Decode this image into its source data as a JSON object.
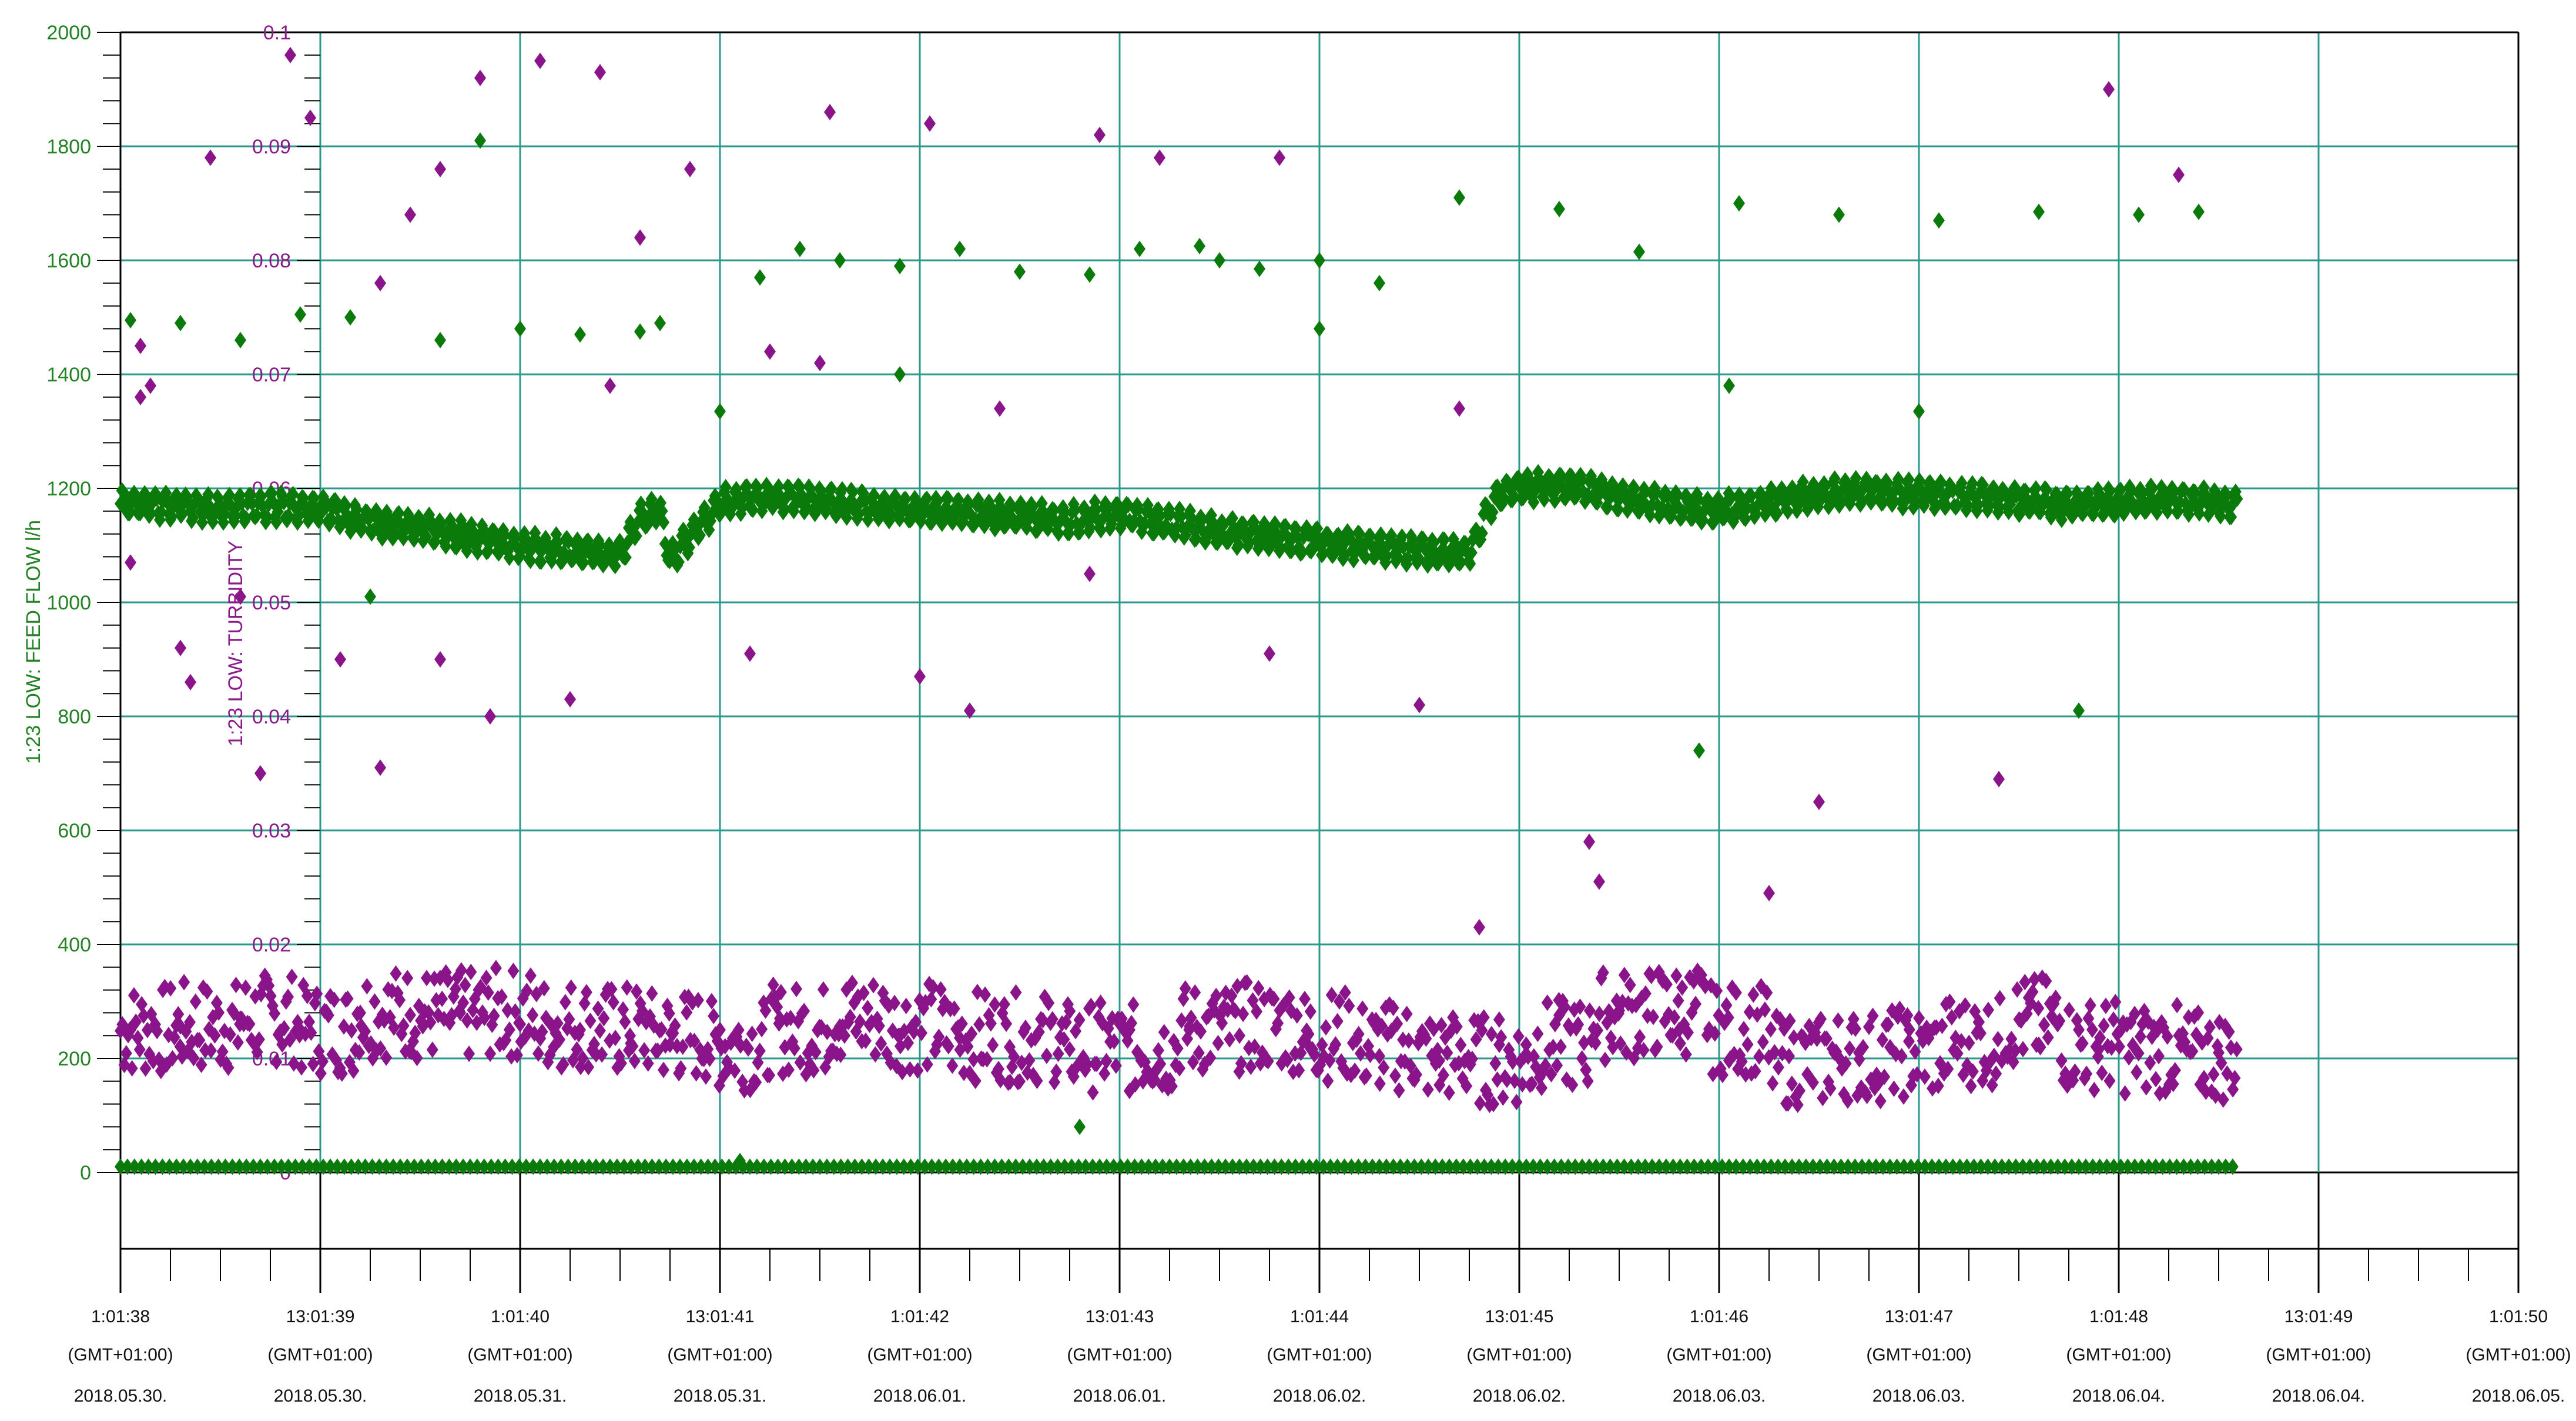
{
  "chart_data": {
    "type": "scatter",
    "colors": {
      "feed_flow": "#0a7a0a",
      "turbidity": "#8a148a",
      "grid": "#2a9a8a",
      "axis": "#000000"
    },
    "y_left": {
      "label": "1:23 LOW: FEED FLOW l/h",
      "ticks": [
        "2000",
        "1800",
        "1600",
        "1400",
        "1200",
        "1000",
        "800",
        "600",
        "400",
        "200",
        "0"
      ],
      "range": [
        0,
        2000
      ]
    },
    "y_right": {
      "label": "1:23 LOW: TURBIDITY",
      "ticks": [
        "0.1",
        "0.09",
        "0.08",
        "0.07",
        "0.06",
        "0.05",
        "0.04",
        "0.03",
        "0.02",
        "0.01",
        "0"
      ],
      "range": [
        0,
        0.1
      ]
    },
    "x_axis": {
      "labels": [
        {
          "time": "1:01:38",
          "tz": "(GMT+01:00)",
          "date": "2018.05.30."
        },
        {
          "time": "13:01:39",
          "tz": "(GMT+01:00)",
          "date": "2018.05.30."
        },
        {
          "time": "1:01:40",
          "tz": "(GMT+01:00)",
          "date": "2018.05.31."
        },
        {
          "time": "13:01:41",
          "tz": "(GMT+01:00)",
          "date": "2018.05.31."
        },
        {
          "time": "1:01:42",
          "tz": "(GMT+01:00)",
          "date": "2018.06.01."
        },
        {
          "time": "13:01:43",
          "tz": "(GMT+01:00)",
          "date": "2018.06.01."
        },
        {
          "time": "1:01:44",
          "tz": "(GMT+01:00)",
          "date": "2018.06.02."
        },
        {
          "time": "13:01:45",
          "tz": "(GMT+01:00)",
          "date": "2018.06.02."
        },
        {
          "time": "1:01:46",
          "tz": "(GMT+01:00)",
          "date": "2018.06.03."
        },
        {
          "time": "13:01:47",
          "tz": "(GMT+01:00)",
          "date": "2018.06.03."
        },
        {
          "time": "1:01:48",
          "tz": "(GMT+01:00)",
          "date": "2018.06.04."
        },
        {
          "time": "13:01:49",
          "tz": "(GMT+01:00)",
          "date": "2018.06.04."
        },
        {
          "time": "1:01:50",
          "tz": "(GMT+01:00)",
          "date": "2018.06.05."
        }
      ]
    },
    "grid": true,
    "series": [
      {
        "name": "1:23 LOW: FEED FLOW l/h",
        "axis": "left",
        "x": [
          0,
          0.25,
          0.5,
          0.75,
          1,
          1.25,
          1.5,
          1.75,
          2,
          2.25,
          2.5,
          2.75,
          2.6,
          2.7,
          3,
          3.25,
          3.5,
          3.75,
          3.8,
          4,
          4.25,
          4.5,
          4.75,
          5,
          5.25,
          5.4,
          5.5,
          5.75,
          6,
          6.25,
          6.5,
          6.75,
          6.85,
          6.9,
          7,
          7.25,
          7.5,
          7.75,
          8,
          8.25,
          8.5,
          8.75,
          9,
          9.25,
          9.5,
          9.75,
          10,
          10.25,
          10.5,
          10.6,
          0.05,
          0.3,
          0.6,
          0.9,
          1.15,
          1.6,
          2.0,
          2.3,
          2.7,
          3.0,
          3.2,
          3.4,
          3.6,
          3.9,
          4.2,
          4.5,
          4.85,
          5.1,
          5.4,
          5.7,
          6.0,
          6.3,
          6.7,
          7.2,
          7.6,
          8.1,
          8.6,
          9.1,
          9.6,
          10.1,
          10.4,
          6.0,
          1.25,
          1.8,
          3.9,
          5.5,
          2.6,
          8.05,
          9.8,
          7.9,
          9.0,
          3.1,
          4.8
        ],
        "values": [
          1175,
          1170,
          1165,
          1168,
          1165,
          1140,
          1130,
          1115,
          1100,
          1090,
          1083,
          1075,
          1148,
          1160,
          1175,
          1185,
          1178,
          1170,
          1165,
          1162,
          1158,
          1150,
          1145,
          1155,
          1140,
          1132,
          1125,
          1115,
          1105,
          1098,
          1090,
          1085,
          1165,
          1190,
          1200,
          1205,
          1185,
          1170,
          1162,
          1175,
          1190,
          1195,
          1190,
          1185,
          1180,
          1170,
          1178,
          1180,
          1175,
          1172,
          1495,
          1490,
          1460,
          1505,
          1500,
          1460,
          1480,
          1470,
          1490,
          1335,
          1570,
          1620,
          1600,
          1590,
          1620,
          1580,
          1575,
          1620,
          1625,
          1585,
          1600,
          1560,
          1710,
          1690,
          1615,
          1700,
          1680,
          1670,
          1685,
          1680,
          1685,
          1480,
          1010,
          1810,
          1400,
          1600,
          1475,
          1380,
          810,
          740,
          1335,
          20,
          80
        ],
        "baseline_x_range": [
          0,
          10.6
        ],
        "baseline_value": 10
      },
      {
        "name": "1:23 LOW: TURBIDITY",
        "axis": "right",
        "x": [
          0.05,
          0.3,
          0.6,
          0.9,
          1.2,
          1.45,
          1.7,
          2.0,
          2.3,
          2.55,
          2.75,
          3.0,
          3.3,
          3.6,
          3.9,
          4.2,
          4.45,
          4.75,
          5.05,
          5.35,
          5.6,
          5.95,
          6.3,
          6.6,
          6.9,
          7.2,
          7.5,
          7.8,
          8.05,
          8.35,
          8.7,
          8.95,
          9.3,
          9.6,
          9.9,
          10.2,
          10.5,
          0.15,
          0.45,
          0.85,
          1.3,
          1.8,
          2.1,
          2.4,
          2.6,
          2.85,
          3.25,
          3.55,
          4.05,
          4.4,
          4.9,
          5.2,
          5.8,
          6.5,
          6.8,
          7.35,
          8.25,
          9.95,
          0.05,
          0.1,
          0.3,
          0.35,
          0.6,
          0.7,
          1.1,
          1.3,
          1.6,
          1.85,
          2.25,
          3.15,
          4.0,
          4.85,
          5.75,
          6.7,
          7.4,
          8.5,
          9.4,
          10.3,
          0.1,
          1.45,
          2.45,
          3.5,
          4.25,
          0.95,
          1.6
        ],
        "values": [
          0.0125,
          0.0128,
          0.0135,
          0.0125,
          0.014,
          0.0138,
          0.014,
          0.013,
          0.0125,
          0.012,
          0.0112,
          0.0125,
          0.0135,
          0.0128,
          0.012,
          0.0118,
          0.011,
          0.0108,
          0.0125,
          0.0128,
          0.012,
          0.011,
          0.0102,
          0.0098,
          0.0112,
          0.0138,
          0.0142,
          0.0125,
          0.0098,
          0.0102,
          0.0105,
          0.0115,
          0.0132,
          0.0112,
          0.0108,
          0.0102,
          0.0105,
          0.069,
          0.089,
          0.098,
          0.078,
          0.096,
          0.0975,
          0.0965,
          0.082,
          0.088,
          0.072,
          0.093,
          0.092,
          0.067,
          0.091,
          0.089,
          0.089,
          0.041,
          0.0215,
          0.029,
          0.0245,
          0.095,
          0.0535,
          0.068,
          0.046,
          0.043,
          0.0505,
          0.035,
          0.045,
          0.0355,
          0.045,
          0.04,
          0.0415,
          0.0455,
          0.0435,
          0.0525,
          0.0455,
          0.067,
          0.0255,
          0.0325,
          0.0345,
          0.0875,
          0.0725,
          0.084,
          0.069,
          0.071,
          0.0405,
          0.0925,
          0.088
        ],
        "band": {
          "x_range": [
            0,
            10.6
          ],
          "y_center": 0.0125,
          "spread": 0.004
        }
      }
    ]
  }
}
